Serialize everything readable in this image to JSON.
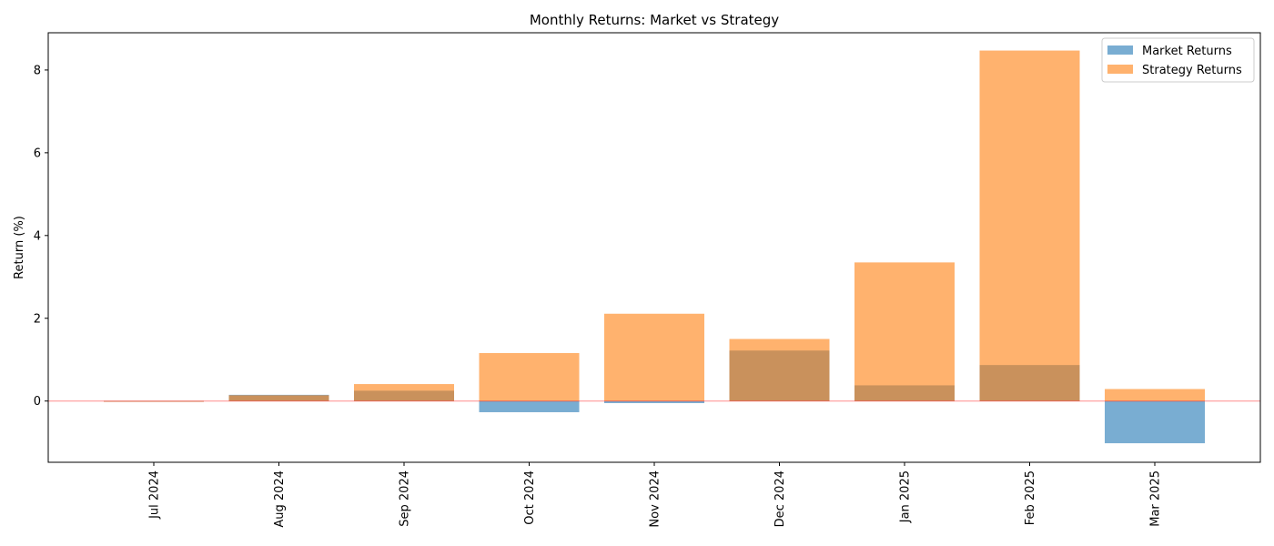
{
  "chart_data": {
    "type": "bar",
    "title": "Monthly Returns: Market vs Strategy",
    "xlabel": "",
    "ylabel": "Return (%)",
    "categories": [
      "Jul 2024",
      "Aug 2024",
      "Sep 2024",
      "Oct 2024",
      "Nov 2024",
      "Dec 2024",
      "Jan 2025",
      "Feb 2025",
      "Mar 2025"
    ],
    "series": [
      {
        "name": "Market Returns",
        "color": "#1f77b4",
        "values": [
          0.0,
          0.15,
          0.25,
          -0.27,
          -0.05,
          1.22,
          0.38,
          0.87,
          -1.02
        ]
      },
      {
        "name": "Strategy Returns",
        "color": "#ff7f0e",
        "values": [
          0.0,
          0.14,
          0.41,
          1.16,
          2.11,
          1.5,
          3.35,
          8.47,
          0.29
        ]
      }
    ],
    "ylim": [
      -1.48,
      8.9
    ],
    "yticks": [
      0,
      2,
      4,
      6,
      8
    ],
    "bar_opacity": 0.6,
    "zero_line_color": "#ff0000",
    "legend": {
      "position": "top-right",
      "entries": [
        "Market Returns",
        "Strategy Returns"
      ]
    },
    "grid": false,
    "overlapping_bars": true
  }
}
